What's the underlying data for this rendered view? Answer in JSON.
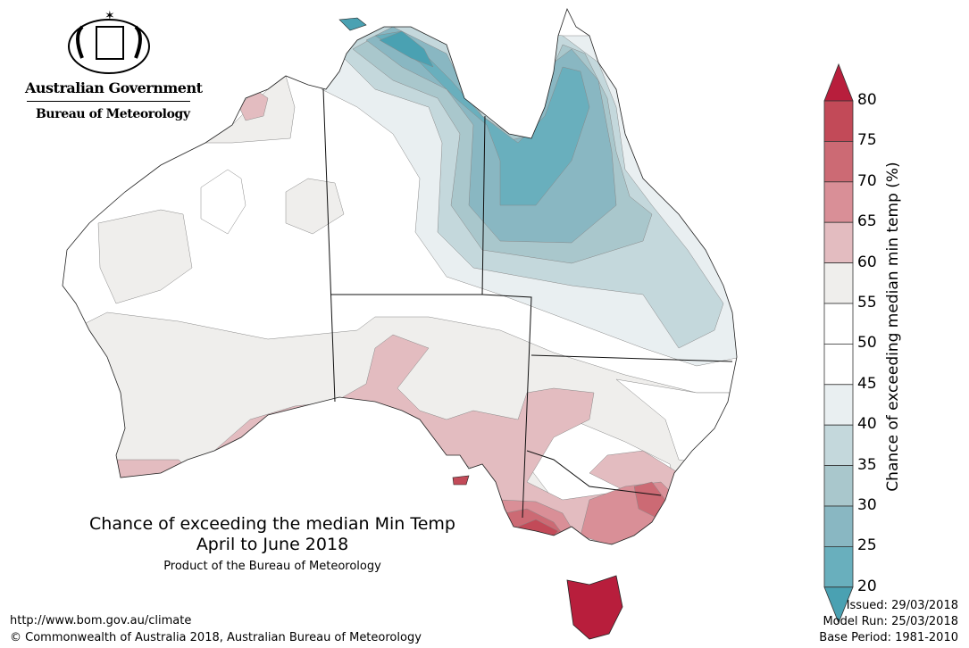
{
  "logo": {
    "government": "Australian Government",
    "bureau": "Bureau of Meteorology"
  },
  "title": {
    "line1": "Chance of exceeding the median Min Temp",
    "line2": "April to June 2018",
    "product": "Product of the Bureau of Meteorology"
  },
  "footer": {
    "url": "http://www.bom.gov.au/climate",
    "copyright": "© Commonwealth of Australia 2018, Australian Bureau of Meteorology",
    "issued": "Issued: 29/03/2018",
    "model_run": "Model Run: 25/03/2018",
    "base_period": "Base Period: 1981-2010"
  },
  "legend": {
    "label": "Chance of exceeding median min temp (%)",
    "ticks": [
      "80",
      "75",
      "70",
      "65",
      "60",
      "55",
      "50",
      "45",
      "40",
      "35",
      "30",
      "25",
      "20"
    ],
    "colors": {
      "above80": "#b81e3c",
      "bands": [
        "#c24a58",
        "#cc6a74",
        "#d98f97",
        "#e3bcc0",
        "#efeeec",
        "#ffffff",
        "#ffffff",
        "#e9eff1",
        "#c4d8dc",
        "#a9c7cc",
        "#89b7c2",
        "#69afbd"
      ],
      "below20": "#4aa1b2"
    }
  }
}
